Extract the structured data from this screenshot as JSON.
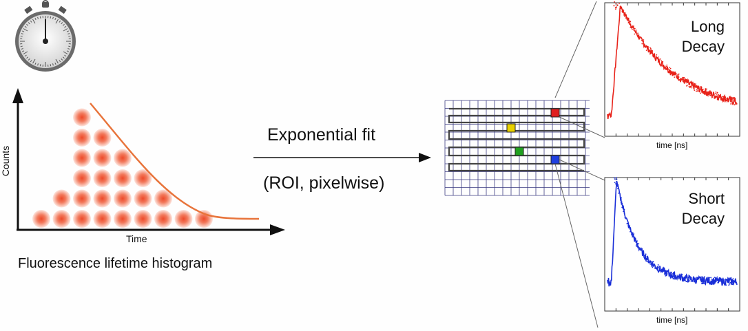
{
  "histogram": {
    "caption": "Fluorescence lifetime histogram",
    "y_axis_label": "Counts",
    "x_axis_label": "Time",
    "bar_heights": [
      1,
      2,
      6,
      5,
      4,
      3,
      2,
      1,
      1
    ],
    "dot_color": "#e8452a",
    "curve_color": "#e8743b"
  },
  "fit": {
    "title": "Exponential fit",
    "subtitle": "(ROI, pixelwise)"
  },
  "pixel_grid": {
    "line_color": "#33337a",
    "selected_pixels": [
      {
        "color": "#e02020"
      },
      {
        "color": "#e8d000"
      },
      {
        "color": "#20a020"
      },
      {
        "color": "#2040e0"
      }
    ]
  },
  "plots": {
    "long": {
      "title_line1": "Long",
      "title_line2": "Decay",
      "xlabel": "time [ns]",
      "color": "#e8231a"
    },
    "short": {
      "title_line1": "Short",
      "title_line2": "Decay",
      "xlabel": "time [ns]",
      "color": "#1a2fd8"
    }
  },
  "stopwatch": {
    "icon": "stopwatch-icon"
  }
}
